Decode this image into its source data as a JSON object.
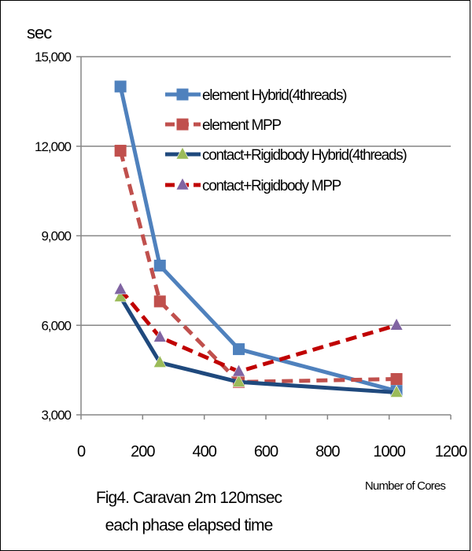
{
  "chart_data": {
    "type": "line",
    "ylabel": "sec",
    "xlabel": "Number of Cores",
    "xlim": [
      0,
      1200
    ],
    "ylim": [
      3000,
      15000
    ],
    "x_ticks": [
      0,
      200,
      400,
      600,
      800,
      1000,
      1200
    ],
    "x_tick_labels": [
      "0",
      "200",
      "400",
      "600",
      "800",
      "1000",
      "1200"
    ],
    "y_ticks": [
      3000,
      6000,
      9000,
      12000,
      15000
    ],
    "y_tick_labels": [
      "3,000",
      "6,000",
      "9,000",
      "12,000",
      "15,000"
    ],
    "grid": true,
    "legend_position": "top-right",
    "series": [
      {
        "name": "element Hybrid(4threads)",
        "x": [
          128,
          256,
          512,
          1024
        ],
        "values": [
          14000,
          8000,
          5200,
          3800
        ],
        "color": "#4f81bd",
        "marker": "square",
        "dash": "solid"
      },
      {
        "name": "element MPP",
        "x": [
          128,
          256,
          512,
          1024
        ],
        "values": [
          11850,
          6800,
          4100,
          4200
        ],
        "color": "#c0504d",
        "marker": "square",
        "dash": "dashed"
      },
      {
        "name": "contact+Rigidbody Hybrid(4threads)",
        "x": [
          128,
          256,
          512,
          1024
        ],
        "values": [
          6950,
          4750,
          4100,
          3750
        ],
        "color": "#1f497d",
        "marker": "triangle",
        "marker_color": "#9bbb59",
        "dash": "solid"
      },
      {
        "name": "contact+Rigidbody MPP",
        "x": [
          128,
          256,
          512,
          1024
        ],
        "values": [
          7200,
          5600,
          4450,
          6000
        ],
        "color": "#c00000",
        "marker": "triangle",
        "marker_color": "#8064a2",
        "dash": "dashed"
      }
    ]
  },
  "caption": {
    "line1": "Fig4. Caravan 2m 120msec",
    "line2": "each phase elapsed time"
  }
}
